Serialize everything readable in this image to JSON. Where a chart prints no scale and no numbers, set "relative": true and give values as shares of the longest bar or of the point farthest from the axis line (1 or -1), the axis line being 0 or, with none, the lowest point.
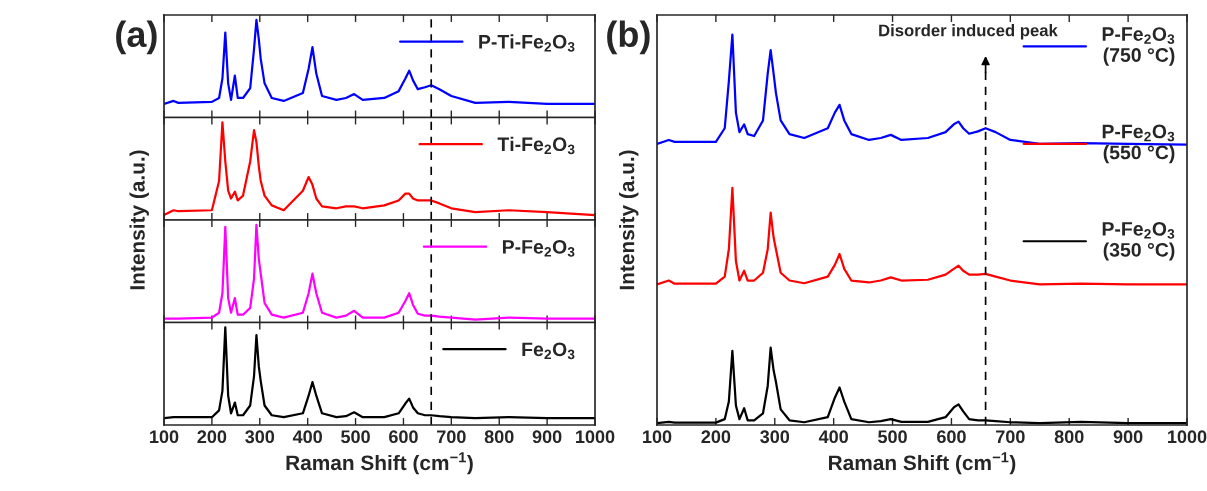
{
  "chart_data": [
    {
      "type": "line",
      "relative": true,
      "tick_labels": false,
      "xlim": [
        100,
        1000
      ],
      "xticks": [
        100,
        200,
        300,
        400,
        500,
        600,
        700,
        800,
        900,
        1000
      ],
      "legend": "top right",
      "annotations": [
        "(a)"
      ],
      "ref_lines": [
        {
          "axis": "x",
          "value": 658,
          "line_style": "dashed",
          "color": "#000000"
        }
      ],
      "x": [
        100,
        120,
        130,
        200,
        215,
        222,
        228,
        234,
        240,
        248,
        254,
        265,
        280,
        288,
        293,
        298,
        302,
        310,
        325,
        350,
        390,
        402,
        410,
        418,
        430,
        460,
        480,
        497,
        515,
        560,
        590,
        604,
        612,
        620,
        630,
        645,
        658,
        675,
        700,
        750,
        820,
        900,
        1000
      ],
      "series": [
        {
          "name": "P-Ti-Fe$_{2}$O$_{3}$",
          "color": "#0000ff",
          "values": [
            0.14,
            0.17,
            0.15,
            0.16,
            0.2,
            0.4,
            0.87,
            0.35,
            0.18,
            0.43,
            0.2,
            0.2,
            0.3,
            0.7,
            1.0,
            0.8,
            0.6,
            0.35,
            0.2,
            0.17,
            0.25,
            0.5,
            0.72,
            0.45,
            0.22,
            0.18,
            0.2,
            0.24,
            0.18,
            0.2,
            0.27,
            0.4,
            0.48,
            0.38,
            0.29,
            0.31,
            0.33,
            0.29,
            0.22,
            0.15,
            0.16,
            0.14,
            0.14
          ]
        }
      ]
    },
    {
      "type": "line",
      "relative": true,
      "tick_labels": false,
      "xlim": [
        100,
        1000
      ],
      "xticks": [
        100,
        200,
        300,
        400,
        500,
        600,
        700,
        800,
        900,
        1000
      ],
      "legend": "top right",
      "ylabel": "Intensity (a.u.)",
      "ref_lines": [
        {
          "axis": "x",
          "value": 658,
          "line_style": "dashed",
          "color": "#000000"
        }
      ],
      "x": [
        100,
        120,
        130,
        200,
        215,
        222,
        228,
        234,
        240,
        248,
        254,
        265,
        280,
        288,
        293,
        298,
        302,
        310,
        325,
        350,
        390,
        402,
        410,
        418,
        430,
        460,
        480,
        497,
        515,
        560,
        590,
        604,
        612,
        620,
        630,
        645,
        658,
        675,
        700,
        750,
        820,
        900,
        1000
      ],
      "series": [
        {
          "name": "Ti-Fe$_{2}$O$_{3}$",
          "color": "#ff0000",
          "values": [
            0.05,
            0.1,
            0.09,
            0.1,
            0.4,
            1.0,
            0.6,
            0.3,
            0.22,
            0.29,
            0.2,
            0.25,
            0.6,
            0.92,
            0.8,
            0.55,
            0.4,
            0.25,
            0.15,
            0.1,
            0.3,
            0.44,
            0.36,
            0.22,
            0.14,
            0.12,
            0.14,
            0.14,
            0.12,
            0.15,
            0.2,
            0.27,
            0.27,
            0.22,
            0.2,
            0.2,
            0.2,
            0.17,
            0.12,
            0.08,
            0.1,
            0.08,
            0.05
          ]
        }
      ]
    },
    {
      "type": "line",
      "relative": true,
      "tick_labels": false,
      "xlim": [
        100,
        1000
      ],
      "xticks": [
        100,
        200,
        300,
        400,
        500,
        600,
        700,
        800,
        900,
        1000
      ],
      "legend": "top right",
      "ref_lines": [
        {
          "axis": "x",
          "value": 658,
          "line_style": "dashed",
          "color": "#000000"
        }
      ],
      "x": [
        100,
        120,
        130,
        200,
        215,
        222,
        228,
        234,
        240,
        248,
        254,
        265,
        280,
        288,
        293,
        298,
        302,
        310,
        325,
        350,
        390,
        402,
        410,
        418,
        430,
        460,
        480,
        497,
        515,
        560,
        590,
        604,
        612,
        620,
        630,
        645,
        658,
        675,
        700,
        750,
        820,
        900,
        1000
      ],
      "series": [
        {
          "name": "P-Fe$_{2}$O$_{3}$",
          "color": "#ff00ff",
          "values": [
            0.04,
            0.04,
            0.04,
            0.05,
            0.1,
            0.3,
            0.98,
            0.25,
            0.1,
            0.25,
            0.08,
            0.08,
            0.15,
            0.45,
            1.0,
            0.65,
            0.5,
            0.2,
            0.08,
            0.05,
            0.1,
            0.3,
            0.5,
            0.3,
            0.1,
            0.05,
            0.07,
            0.12,
            0.05,
            0.05,
            0.1,
            0.22,
            0.3,
            0.18,
            0.09,
            0.07,
            0.07,
            0.06,
            0.05,
            0.03,
            0.05,
            0.04,
            0.04
          ]
        }
      ]
    },
    {
      "type": "line",
      "relative": true,
      "tick_labels": "x",
      "xlim": [
        100,
        1000
      ],
      "xticks": [
        100,
        200,
        300,
        400,
        500,
        600,
        700,
        800,
        900,
        1000
      ],
      "legend": "top right",
      "xlabel": "Raman Shift (cm$^{−1}$)",
      "ref_lines": [
        {
          "axis": "x",
          "value": 658,
          "line_style": "dashed",
          "color": "#000000"
        }
      ],
      "x": [
        100,
        120,
        130,
        200,
        215,
        222,
        228,
        234,
        240,
        248,
        254,
        265,
        280,
        288,
        293,
        298,
        302,
        310,
        325,
        350,
        390,
        402,
        410,
        418,
        430,
        460,
        480,
        497,
        515,
        560,
        590,
        604,
        612,
        620,
        630,
        645,
        658,
        675,
        700,
        750,
        820,
        900,
        1000
      ],
      "series": [
        {
          "name": "Fe$_{2}$O$_{3}$",
          "color": "#000000",
          "values": [
            0.07,
            0.08,
            0.08,
            0.08,
            0.15,
            0.35,
            1.0,
            0.3,
            0.12,
            0.23,
            0.1,
            0.1,
            0.2,
            0.5,
            0.92,
            0.6,
            0.45,
            0.2,
            0.1,
            0.08,
            0.12,
            0.3,
            0.44,
            0.3,
            0.12,
            0.08,
            0.09,
            0.13,
            0.08,
            0.08,
            0.12,
            0.22,
            0.27,
            0.18,
            0.12,
            0.1,
            0.1,
            0.09,
            0.08,
            0.07,
            0.08,
            0.07,
            0.07
          ]
        }
      ]
    },
    {
      "type": "line",
      "relative": true,
      "tick_labels": "x",
      "xlim": [
        100,
        1000
      ],
      "xticks": [
        100,
        200,
        300,
        400,
        500,
        600,
        700,
        800,
        900,
        1000
      ],
      "legend": "top right",
      "xlabel": "Raman Shift (cm$^{−1}$)",
      "ylabel": "Intensity (a.u.)",
      "annotations": [
        "(b)"
      ],
      "ref_lines": [
        {
          "axis": "x",
          "value": 658,
          "line_style": "dashed",
          "color": "#000000",
          "label": "Disorder induced peak"
        }
      ],
      "x": [
        100,
        120,
        130,
        200,
        215,
        222,
        228,
        234,
        240,
        248,
        254,
        265,
        280,
        288,
        293,
        298,
        302,
        310,
        325,
        350,
        390,
        402,
        410,
        418,
        430,
        460,
        480,
        497,
        515,
        560,
        590,
        604,
        612,
        620,
        630,
        645,
        658,
        675,
        700,
        750,
        820,
        900,
        1000
      ],
      "series": [
        {
          "name": "P-Fe$_{2}$O$_{3}$\n(750 °C)",
          "color": "#0000ff",
          "values": [
            0.72,
            0.73,
            0.725,
            0.725,
            0.76,
            0.88,
            1.0,
            0.8,
            0.75,
            0.77,
            0.745,
            0.74,
            0.78,
            0.9,
            0.96,
            0.9,
            0.85,
            0.78,
            0.745,
            0.735,
            0.76,
            0.8,
            0.82,
            0.78,
            0.745,
            0.73,
            0.735,
            0.743,
            0.73,
            0.735,
            0.75,
            0.77,
            0.777,
            0.76,
            0.746,
            0.752,
            0.76,
            0.75,
            0.73,
            0.72,
            0.722,
            0.72,
            0.718
          ]
        },
        {
          "name": "P-Fe$_{2}$O$_{3}$\n(550 °C)",
          "color": "#ff0000",
          "values": [
            0.36,
            0.37,
            0.362,
            0.362,
            0.38,
            0.45,
            0.607,
            0.42,
            0.37,
            0.395,
            0.37,
            0.37,
            0.39,
            0.45,
            0.544,
            0.48,
            0.45,
            0.39,
            0.37,
            0.363,
            0.38,
            0.41,
            0.438,
            0.4,
            0.37,
            0.365,
            0.37,
            0.378,
            0.37,
            0.372,
            0.385,
            0.4,
            0.408,
            0.395,
            0.385,
            0.385,
            0.387,
            0.38,
            0.37,
            0.36,
            0.362,
            0.36,
            0.36
          ]
        },
        {
          "name": "P-Fe$_{2}$O$_{3}$\n(350 °C)",
          "color": "#000000",
          "values": [
            0.005,
            0.008,
            0.006,
            0.006,
            0.015,
            0.06,
            0.19,
            0.05,
            0.015,
            0.043,
            0.012,
            0.012,
            0.03,
            0.1,
            0.198,
            0.14,
            0.11,
            0.04,
            0.012,
            0.007,
            0.02,
            0.07,
            0.096,
            0.06,
            0.015,
            0.007,
            0.01,
            0.015,
            0.008,
            0.008,
            0.02,
            0.045,
            0.053,
            0.035,
            0.015,
            0.012,
            0.012,
            0.01,
            0.007,
            0.005,
            0.008,
            0.005,
            0.005
          ]
        }
      ]
    }
  ]
}
